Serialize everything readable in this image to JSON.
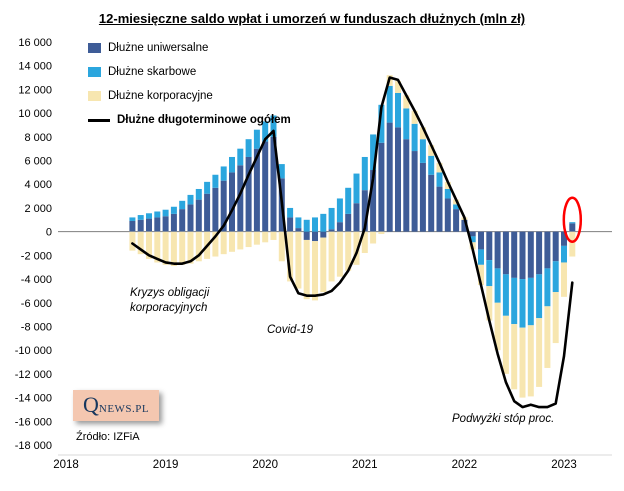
{
  "title": "12-miesięczne saldo wpłat i umorzeń w funduszach dłużnych (mln zł)",
  "source": "Źródło: IZFiA",
  "logo": {
    "q": "Q",
    "rest": "NEWS.PL"
  },
  "annotations": {
    "crisis_line1": "Kryzys obligacji",
    "crisis_line2": "korporacyjnych",
    "covid": "Covid-19",
    "rates": "Podwyżki stóp proc."
  },
  "chart_data": {
    "type": "bar",
    "stacked": true,
    "combo_line": true,
    "title": "12-miesięczne saldo wpłat i umorzeń w funduszach dłużnych (mln zł)",
    "ylim": [
      -18000,
      16000
    ],
    "ytick_step": 2000,
    "grid": false,
    "legend_position": "top-left-inside",
    "x_labels_years": [
      "2018",
      "2019",
      "2020",
      "2021",
      "2022",
      "2023"
    ],
    "months": [
      "2018-09",
      "2018-10",
      "2018-11",
      "2018-12",
      "2019-01",
      "2019-02",
      "2019-03",
      "2019-04",
      "2019-05",
      "2019-06",
      "2019-07",
      "2019-08",
      "2019-09",
      "2019-10",
      "2019-11",
      "2019-12",
      "2020-01",
      "2020-02",
      "2020-03",
      "2020-04",
      "2020-05",
      "2020-06",
      "2020-07",
      "2020-08",
      "2020-09",
      "2020-10",
      "2020-11",
      "2020-12",
      "2021-01",
      "2021-02",
      "2021-03",
      "2021-04",
      "2021-05",
      "2021-06",
      "2021-07",
      "2021-08",
      "2021-09",
      "2021-10",
      "2021-11",
      "2021-12",
      "2022-01",
      "2022-02",
      "2022-03",
      "2022-04",
      "2022-05",
      "2022-06",
      "2022-07",
      "2022-08",
      "2022-09",
      "2022-10",
      "2022-11",
      "2022-12",
      "2023-01",
      "2023-02"
    ],
    "series": [
      {
        "name": "Dłużne uniwersalne",
        "color": "#3E5C97",
        "values": [
          900,
          1000,
          1100,
          1200,
          1300,
          1500,
          1900,
          2300,
          2700,
          3200,
          3700,
          4300,
          5000,
          5600,
          6300,
          7000,
          7600,
          8000,
          4500,
          1200,
          300,
          -700,
          -800,
          -500,
          200,
          800,
          1500,
          2400,
          3500,
          5200,
          7500,
          9200,
          8800,
          7800,
          6800,
          5800,
          4800,
          3800,
          2800,
          1900,
          1000,
          -400,
          -1500,
          -2400,
          -3100,
          -3600,
          -3900,
          -4000,
          -3900,
          -3600,
          -3100,
          -2500,
          -1200,
          700
        ]
      },
      {
        "name": "Dłużne skarbowe",
        "color": "#2BA6DE",
        "values": [
          300,
          400,
          450,
          500,
          550,
          600,
          700,
          800,
          900,
          1000,
          1100,
          1200,
          1300,
          1400,
          1500,
          1600,
          1700,
          1800,
          1200,
          800,
          900,
          1000,
          1200,
          1500,
          1800,
          2000,
          2200,
          2500,
          2800,
          3000,
          3200,
          3100,
          2900,
          2600,
          2300,
          2000,
          1600,
          1200,
          800,
          400,
          0,
          -500,
          -1300,
          -2200,
          -2900,
          -3500,
          -3900,
          -4100,
          -4000,
          -3700,
          -3200,
          -2600,
          -1400,
          100
        ]
      },
      {
        "name": "Dłużne korporacyjne",
        "color": "#F7E6B0",
        "values": [
          -1600,
          -1900,
          -2300,
          -2600,
          -2800,
          -2900,
          -2800,
          -2700,
          -2500,
          -2300,
          -2100,
          -1900,
          -1700,
          -1500,
          -1300,
          -1100,
          -900,
          -700,
          -2500,
          -4200,
          -4800,
          -5000,
          -5000,
          -4600,
          -4200,
          -3800,
          -3300,
          -2800,
          -1800,
          -1000,
          -200,
          900,
          1000,
          1100,
          1100,
          1000,
          900,
          800,
          600,
          400,
          200,
          -600,
          -1700,
          -2900,
          -4000,
          -4900,
          -5500,
          -5900,
          -6000,
          -5800,
          -5200,
          -4300,
          -2900,
          -2100
        ]
      }
    ],
    "line_series": {
      "name": "Dłużne długoterminowe ogółem",
      "color": "#000000",
      "values": [
        -1000,
        -1500,
        -2000,
        -2300,
        -2600,
        -2700,
        -2700,
        -2500,
        -2000,
        -1200,
        -400,
        500,
        1800,
        3200,
        4800,
        6300,
        7800,
        8500,
        2500,
        -3800,
        -5200,
        -5400,
        -5400,
        -5300,
        -5000,
        -4300,
        -3300,
        -1800,
        300,
        4500,
        10500,
        13000,
        12800,
        11500,
        10200,
        8800,
        7300,
        5800,
        4200,
        2700,
        1200,
        -1500,
        -4500,
        -7500,
        -10300,
        -12700,
        -14300,
        -14800,
        -14600,
        -14800,
        -14800,
        -14500,
        -10500,
        -4300
      ]
    },
    "highlight": {
      "type": "ellipse",
      "color": "#FF0000",
      "month_index": 53
    },
    "axis_colors": {
      "zero_line": "#7F7F7F",
      "bottom_line": "#D9D9D9",
      "labels": "#000000"
    }
  }
}
